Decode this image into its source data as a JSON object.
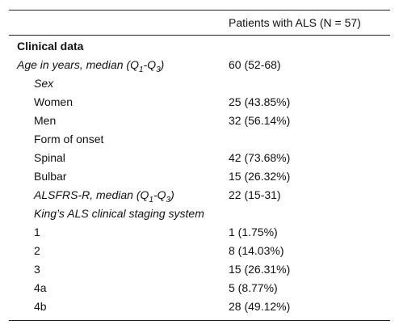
{
  "header": {
    "column": "Patients with ALS (N = 57)"
  },
  "rows": [
    {
      "label": "Clinical data",
      "value": ""
    },
    {
      "label_pre": "Age in years, median (Q",
      "label_sub1": "1",
      "label_mid": "-Q",
      "label_sub2": "3",
      "label_post": ")",
      "value": "60 (52-68)"
    },
    {
      "label": "Sex",
      "value": ""
    },
    {
      "label": "Women",
      "value": "25 (43.85%)"
    },
    {
      "label": "Men",
      "value": "32 (56.14%)"
    },
    {
      "label": "Form of onset",
      "value": ""
    },
    {
      "label": "Spinal",
      "value": "42 (73.68%)"
    },
    {
      "label": "Bulbar",
      "value": "15 (26.32%)"
    },
    {
      "label_pre": "ALSFRS-R, median (Q",
      "label_sub1": "1",
      "label_mid": "-Q",
      "label_sub2": "3",
      "label_post": ")",
      "value": "22 (15-31)"
    },
    {
      "label": "King’s ALS clinical staging system",
      "value": ""
    },
    {
      "label": "1",
      "value": "1 (1.75%)"
    },
    {
      "label": "2",
      "value": "8 (14.03%)"
    },
    {
      "label": "3",
      "value": "15 (26.31%)"
    },
    {
      "label": "4a",
      "value": "5 (8.77%)"
    },
    {
      "label": "4b",
      "value": "28 (49.12%)"
    }
  ]
}
